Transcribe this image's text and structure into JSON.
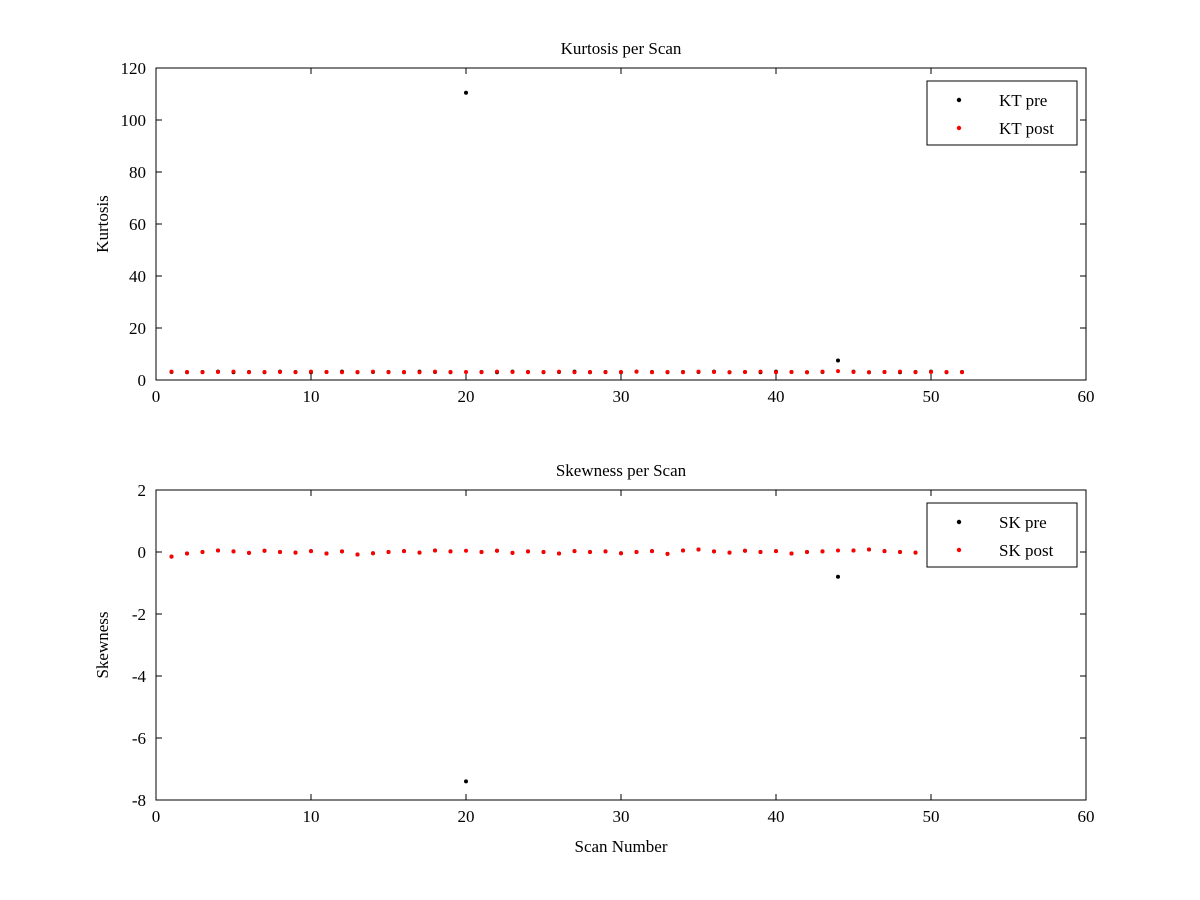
{
  "figure": {
    "background": "#ffffff",
    "axis_color": "#000000"
  },
  "chart_data": [
    {
      "type": "scatter",
      "title": "Kurtosis per Scan",
      "xlabel": "",
      "ylabel": "Kurtosis",
      "xlim": [
        0,
        60
      ],
      "ylim": [
        0,
        120
      ],
      "xticks": [
        0,
        10,
        20,
        30,
        40,
        50,
        60
      ],
      "yticks": [
        0,
        20,
        40,
        60,
        80,
        100,
        120
      ],
      "grid": false,
      "legend_position": "top-right",
      "legend": [
        "KT pre",
        "KT post"
      ],
      "x": [
        1,
        2,
        3,
        4,
        5,
        6,
        7,
        8,
        9,
        10,
        11,
        12,
        13,
        14,
        15,
        16,
        17,
        18,
        19,
        20,
        21,
        22,
        23,
        24,
        25,
        26,
        27,
        28,
        29,
        30,
        31,
        32,
        33,
        34,
        35,
        36,
        37,
        38,
        39,
        40,
        41,
        42,
        43,
        44,
        45,
        46,
        47,
        48,
        49,
        50,
        51,
        52
      ],
      "series": [
        {
          "name": "KT pre",
          "color": "#000000",
          "values": [
            3.1,
            3.0,
            3.1,
            3.2,
            3.0,
            3.1,
            3.0,
            3.2,
            3.1,
            3.0,
            3.1,
            3.2,
            3.0,
            3.1,
            3.1,
            3.0,
            3.2,
            3.1,
            3.0,
            110.5,
            3.1,
            3.0,
            3.2,
            3.1,
            3.0,
            3.1,
            3.2,
            3.0,
            3.1,
            3.0,
            3.2,
            3.1,
            3.0,
            3.1,
            3.1,
            3.2,
            3.0,
            3.1,
            3.0,
            3.2,
            3.1,
            3.0,
            3.1,
            7.5,
            3.2,
            3.0,
            3.1,
            3.0,
            3.1,
            3.2,
            3.0,
            3.1
          ]
        },
        {
          "name": "KT post",
          "color": "#ff0000",
          "values": [
            3.2,
            3.1,
            3.0,
            3.1,
            3.2,
            3.0,
            3.1,
            3.1,
            3.0,
            3.2,
            3.1,
            3.0,
            3.1,
            3.2,
            3.0,
            3.1,
            3.0,
            3.2,
            3.1,
            3.1,
            3.0,
            3.2,
            3.1,
            3.0,
            3.1,
            3.2,
            3.0,
            3.1,
            3.0,
            3.1,
            3.2,
            3.0,
            3.1,
            3.0,
            3.2,
            3.1,
            3.0,
            3.1,
            3.2,
            3.0,
            3.1,
            3.0,
            3.2,
            3.4,
            3.1,
            3.0,
            3.1,
            3.2,
            3.0,
            3.1,
            3.1,
            3.0
          ]
        }
      ]
    },
    {
      "type": "scatter",
      "title": "Skewness per Scan",
      "xlabel": "Scan Number",
      "ylabel": "Skewness",
      "xlim": [
        0,
        60
      ],
      "ylim": [
        -8,
        2
      ],
      "xticks": [
        0,
        10,
        20,
        30,
        40,
        50,
        60
      ],
      "yticks": [
        -8,
        -6,
        -4,
        -2,
        0,
        2
      ],
      "grid": false,
      "legend_position": "top-right",
      "legend": [
        "SK pre",
        "SK post"
      ],
      "x": [
        1,
        2,
        3,
        4,
        5,
        6,
        7,
        8,
        9,
        10,
        11,
        12,
        13,
        14,
        15,
        16,
        17,
        18,
        19,
        20,
        21,
        22,
        23,
        24,
        25,
        26,
        27,
        28,
        29,
        30,
        31,
        32,
        33,
        34,
        35,
        36,
        37,
        38,
        39,
        40,
        41,
        42,
        43,
        44,
        45,
        46,
        47,
        48,
        49
      ],
      "series": [
        {
          "name": "SK pre",
          "color": "#000000",
          "values": [
            -0.15,
            -0.05,
            0.0,
            0.05,
            0.02,
            -0.03,
            0.04,
            0.0,
            -0.02,
            0.03,
            -0.05,
            0.02,
            -0.08,
            -0.04,
            0.0,
            0.03,
            -0.02,
            0.05,
            0.02,
            -7.4,
            0.0,
            0.04,
            -0.03,
            0.02,
            0.0,
            -0.05,
            0.03,
            0.0,
            0.02,
            -0.04,
            0.0,
            0.03,
            -0.06,
            0.05,
            0.08,
            0.02,
            -0.02,
            0.04,
            0.0,
            0.03,
            -0.05,
            0.0,
            0.02,
            -0.8,
            0.05,
            0.08,
            0.03,
            0.0,
            -0.02
          ]
        },
        {
          "name": "SK post",
          "color": "#ff0000",
          "values": [
            -0.15,
            -0.05,
            0.0,
            0.05,
            0.02,
            -0.03,
            0.04,
            0.0,
            -0.02,
            0.03,
            -0.05,
            0.02,
            -0.08,
            -0.04,
            0.0,
            0.03,
            -0.02,
            0.05,
            0.02,
            0.04,
            0.0,
            0.04,
            -0.03,
            0.02,
            0.0,
            -0.05,
            0.03,
            0.0,
            0.02,
            -0.04,
            0.0,
            0.03,
            -0.06,
            0.05,
            0.08,
            0.02,
            -0.02,
            0.04,
            0.0,
            0.03,
            -0.05,
            0.0,
            0.02,
            0.05,
            0.05,
            0.08,
            0.03,
            0.0,
            -0.02
          ]
        }
      ]
    }
  ]
}
